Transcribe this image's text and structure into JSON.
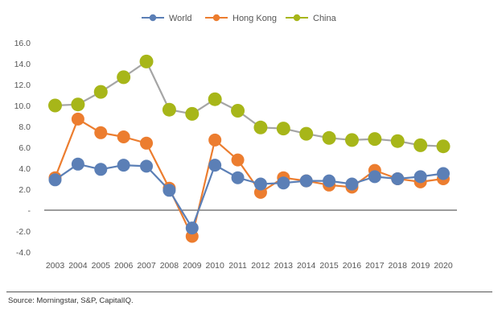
{
  "chart_data": {
    "type": "line",
    "title": "",
    "xlabel": "",
    "ylabel": "",
    "categories": [
      "2003",
      "2004",
      "2005",
      "2006",
      "2007",
      "2008",
      "2009",
      "2010",
      "2011",
      "2012",
      "2013",
      "2014",
      "2015",
      "2016",
      "2017",
      "2018",
      "2019",
      "2020"
    ],
    "ylim": [
      -4,
      16
    ],
    "y_ticks": [
      16,
      14,
      12,
      10,
      8,
      6,
      4,
      2,
      0,
      -2,
      -4
    ],
    "y_tick_labels": [
      "16.0",
      "14.0",
      "12.0",
      "10.0",
      "8.0",
      "6.0",
      "4.0",
      "2.0",
      "-",
      "-2.0",
      "-4.0"
    ],
    "grid": false,
    "legend_position": "top-center",
    "series": [
      {
        "name": "World",
        "color": "#5b7fb6",
        "values": [
          2.9,
          4.4,
          3.9,
          4.3,
          4.2,
          1.9,
          -1.7,
          4.3,
          3.1,
          2.5,
          2.6,
          2.8,
          2.8,
          2.5,
          3.2,
          3.0,
          3.2,
          3.5
        ]
      },
      {
        "name": "Hong Kong",
        "color": "#ec7d2f",
        "values": [
          3.1,
          8.7,
          7.4,
          7.0,
          6.4,
          2.1,
          -2.5,
          6.7,
          4.8,
          1.7,
          3.1,
          2.8,
          2.4,
          2.2,
          3.8,
          3.0,
          2.7,
          3.0
        ]
      },
      {
        "name": "China",
        "color": "#a7b619",
        "values": [
          10.0,
          10.1,
          11.3,
          12.7,
          14.2,
          9.6,
          9.2,
          10.6,
          9.5,
          7.9,
          7.8,
          7.3,
          6.9,
          6.7,
          6.8,
          6.6,
          6.2,
          6.1
        ]
      }
    ]
  },
  "source": "Source: Morningstar, S&P, CapitalIQ."
}
